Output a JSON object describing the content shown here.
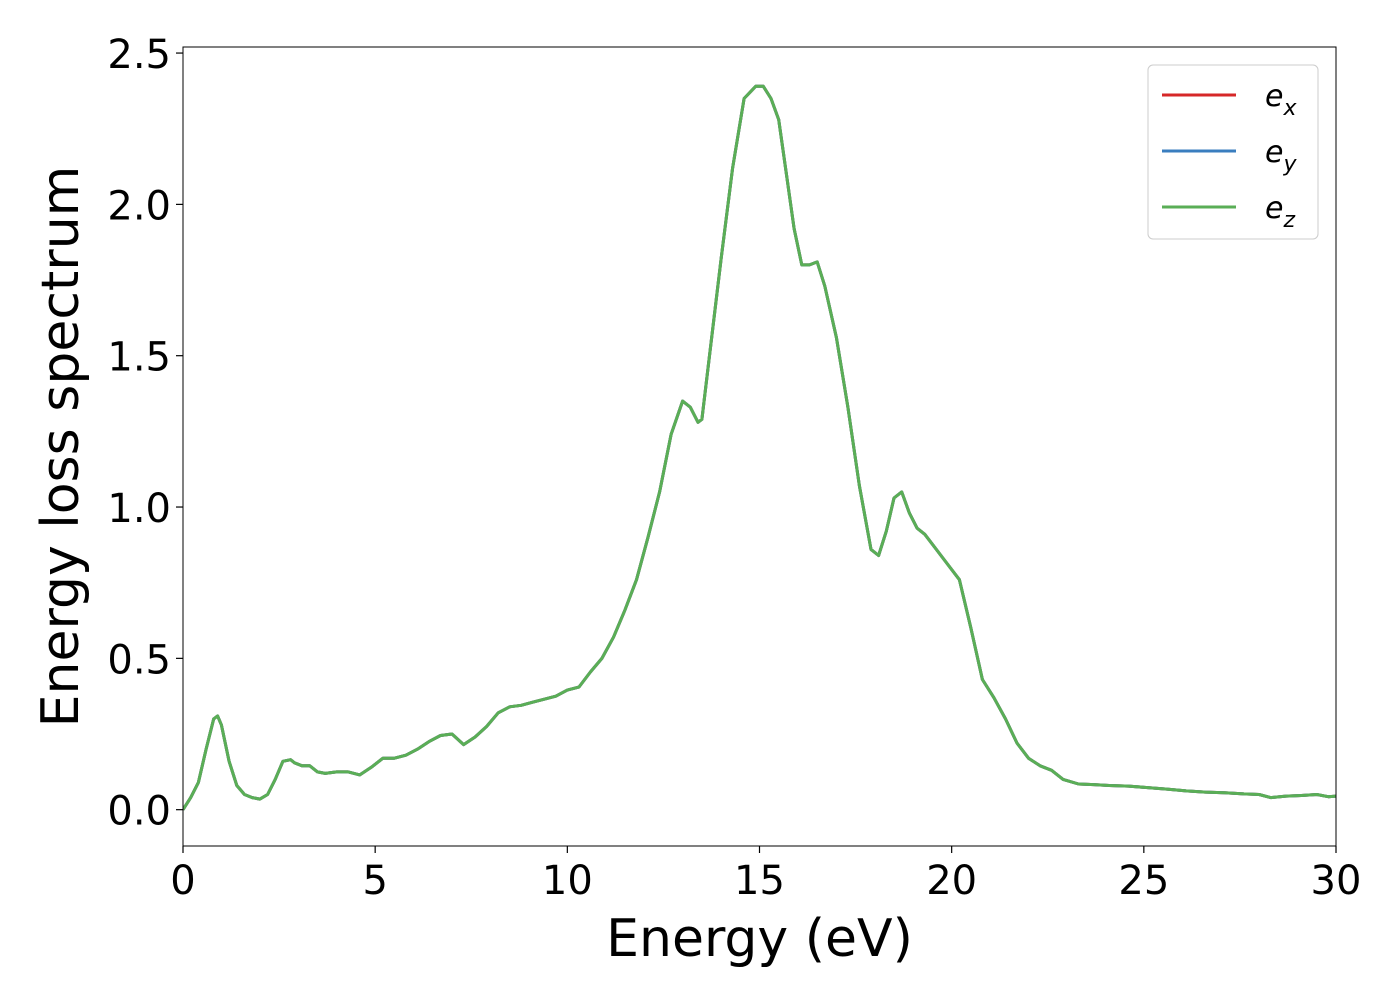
{
  "chart_data": {
    "type": "line",
    "title": "",
    "xlabel": "Energy (eV)",
    "ylabel": "Energy loss spectrum",
    "xlim": [
      0,
      30
    ],
    "ylim": [
      -0.12,
      2.52
    ],
    "xticks": [
      0,
      5,
      10,
      15,
      20,
      25,
      30
    ],
    "xtick_labels": [
      "0",
      "5",
      "10",
      "15",
      "20",
      "25",
      "30"
    ],
    "yticks": [
      0.0,
      0.5,
      1.0,
      1.5,
      2.0,
      2.5
    ],
    "ytick_labels": [
      "0.0",
      "0.5",
      "1.0",
      "1.5",
      "2.0",
      "2.5"
    ],
    "grid": false,
    "legend_position": "top-right",
    "series": [
      {
        "name": "e",
        "subscript": "x",
        "color": "#d62728"
      },
      {
        "name": "e",
        "subscript": "y",
        "color": "#3a7ebf"
      },
      {
        "name": "e",
        "subscript": "z",
        "color": "#5aae56"
      }
    ],
    "x": [
      0,
      0.2,
      0.4,
      0.6,
      0.8,
      0.9,
      1.0,
      1.2,
      1.4,
      1.6,
      1.8,
      2.0,
      2.2,
      2.4,
      2.6,
      2.8,
      2.9,
      3.1,
      3.3,
      3.5,
      3.7,
      4.0,
      4.3,
      4.6,
      4.9,
      5.2,
      5.5,
      5.8,
      6.1,
      6.4,
      6.7,
      7.0,
      7.3,
      7.6,
      7.9,
      8.2,
      8.5,
      8.8,
      9.1,
      9.4,
      9.7,
      10.0,
      10.3,
      10.6,
      10.9,
      11.2,
      11.5,
      11.8,
      12.1,
      12.4,
      12.7,
      13.0,
      13.2,
      13.4,
      13.5,
      13.7,
      14.0,
      14.3,
      14.6,
      14.9,
      15.1,
      15.3,
      15.5,
      15.7,
      15.9,
      16.1,
      16.3,
      16.5,
      16.7,
      17.0,
      17.3,
      17.6,
      17.9,
      18.1,
      18.3,
      18.5,
      18.7,
      18.9,
      19.1,
      19.3,
      19.6,
      19.9,
      20.2,
      20.5,
      20.8,
      21.1,
      21.4,
      21.7,
      22.0,
      22.3,
      22.6,
      22.9,
      23.3,
      23.7,
      24.1,
      24.6,
      25.1,
      25.6,
      26.1,
      26.6,
      27.1,
      27.6,
      28.0,
      28.3,
      28.7,
      29.1,
      29.5,
      29.8,
      30.0
    ],
    "y": [
      0.0,
      0.04,
      0.09,
      0.2,
      0.3,
      0.31,
      0.28,
      0.16,
      0.08,
      0.05,
      0.04,
      0.035,
      0.05,
      0.1,
      0.16,
      0.165,
      0.155,
      0.145,
      0.145,
      0.125,
      0.12,
      0.125,
      0.125,
      0.115,
      0.14,
      0.17,
      0.17,
      0.18,
      0.2,
      0.225,
      0.245,
      0.25,
      0.215,
      0.24,
      0.275,
      0.32,
      0.34,
      0.345,
      0.355,
      0.365,
      0.375,
      0.395,
      0.405,
      0.455,
      0.5,
      0.57,
      0.66,
      0.76,
      0.9,
      1.05,
      1.24,
      1.35,
      1.33,
      1.28,
      1.29,
      1.5,
      1.82,
      2.12,
      2.35,
      2.39,
      2.39,
      2.35,
      2.28,
      2.1,
      1.92,
      1.8,
      1.8,
      1.81,
      1.73,
      1.56,
      1.33,
      1.07,
      0.86,
      0.84,
      0.92,
      1.03,
      1.05,
      0.98,
      0.93,
      0.91,
      0.86,
      0.81,
      0.76,
      0.6,
      0.43,
      0.37,
      0.3,
      0.22,
      0.17,
      0.145,
      0.13,
      0.1,
      0.085,
      0.083,
      0.08,
      0.078,
      0.073,
      0.068,
      0.062,
      0.058,
      0.056,
      0.052,
      0.05,
      0.04,
      0.045,
      0.047,
      0.05,
      0.043,
      0.045
    ]
  }
}
